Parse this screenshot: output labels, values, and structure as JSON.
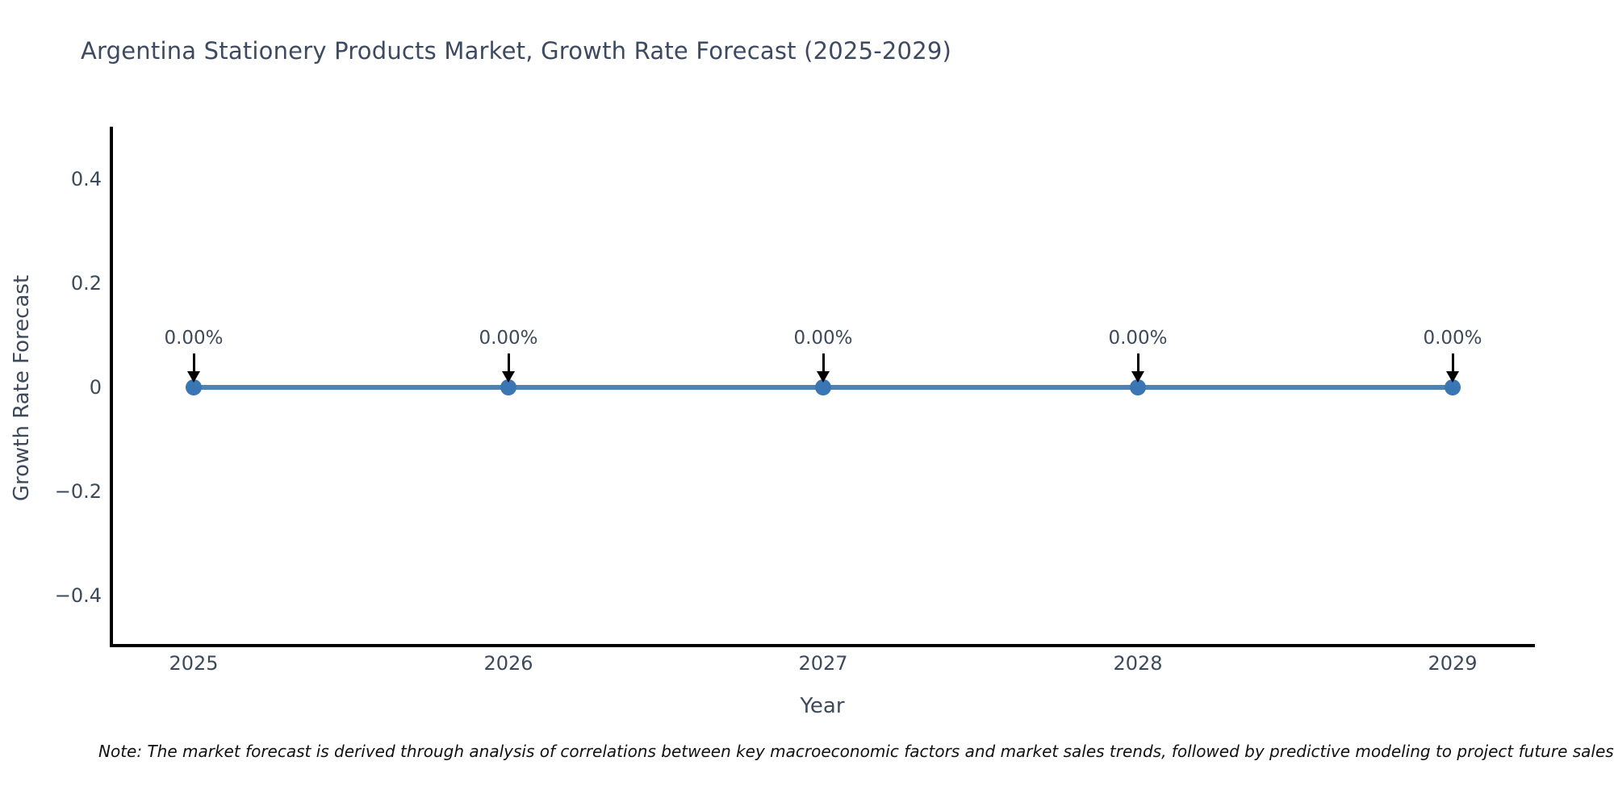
{
  "title": "Argentina Stationery Products Market, Growth Rate Forecast (2025-2029)",
  "note": "Note: The market forecast is derived through analysis of correlations between key macroeconomic factors and market sales trends, followed by predictive modeling to project future sales",
  "colors": {
    "line": "#4d82b2",
    "marker": "#3a76b4",
    "arrow": "#000000",
    "spine": "#000000",
    "text": "#3d4a5c",
    "title_text": "#3d4a63"
  },
  "chart_data": {
    "type": "line",
    "x": [
      2025,
      2026,
      2027,
      2028,
      2029
    ],
    "series": [
      {
        "name": "Growth Rate Forecast",
        "values": [
          0,
          0,
          0,
          0,
          0
        ],
        "point_labels": [
          "0.00%",
          "0.00%",
          "0.00%",
          "0.00%",
          "0.00%"
        ]
      }
    ],
    "xlabel": "Year",
    "ylabel": "Growth Rate Forecast",
    "ylim": [
      -0.5,
      0.5
    ],
    "yticks": [
      {
        "label": "0.4",
        "value": 0.4
      },
      {
        "label": "0.2",
        "value": 0.2
      },
      {
        "label": "0",
        "value": 0
      },
      {
        "label": "−0.2",
        "value": -0.2
      },
      {
        "label": "−0.4",
        "value": -0.4
      }
    ],
    "grid": false,
    "legend": false,
    "annotations_have_arrows": true
  }
}
